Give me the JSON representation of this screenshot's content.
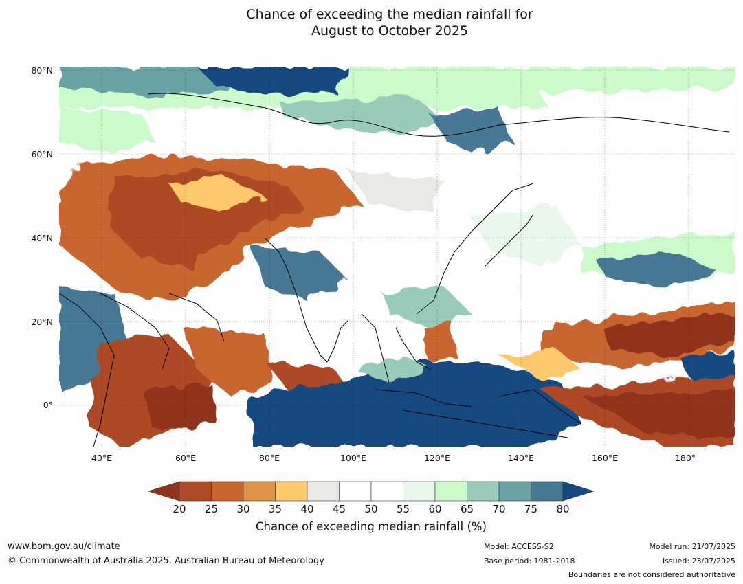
{
  "title": {
    "line1": "Chance of exceeding the median rainfall for",
    "line2": "August to October 2025"
  },
  "map": {
    "lat_labels": [
      "80°N",
      "60°N",
      "40°N",
      "20°N",
      "0°"
    ],
    "lon_labels": [
      "40°E",
      "60°E",
      "80°E",
      "100°E",
      "120°E",
      "140°E",
      "160°E",
      "180°"
    ],
    "lat_range": [
      -10,
      80
    ],
    "lon_range": [
      30,
      190
    ]
  },
  "colorbar": {
    "label": "Chance of exceeding median rainfall (%)",
    "ticks": [
      "20",
      "25",
      "30",
      "35",
      "40",
      "45",
      "50",
      "55",
      "60",
      "65",
      "70",
      "75",
      "80"
    ],
    "colors": {
      "below_20": "#91321c",
      "20_25": "#ae4a26",
      "25_30": "#c9652f",
      "30_35": "#e09449",
      "35_40": "#fdc96a",
      "40_45": "#ebe9e5",
      "45_50": "#ffffff",
      "50_55": "#ffffff",
      "55_60": "#eaf8ec",
      "60_65": "#ccfbcb",
      "65_70": "#99ccb8",
      "70_75": "#6ba3a4",
      "75_80": "#467895",
      "above_80": "#16497f"
    }
  },
  "footer": {
    "website": "www.bom.gov.au/climate",
    "copyright": "© Commonwealth of Australia 2025, Australian Bureau of Meteorology",
    "model": "Model: ACCESS-S2",
    "base_period": "Base period: 1981-2018",
    "model_run": "Model run: 21/07/2025",
    "issued": "Issued: 23/07/2025",
    "disclaimer": "Boundaries are not considered authoritative"
  }
}
